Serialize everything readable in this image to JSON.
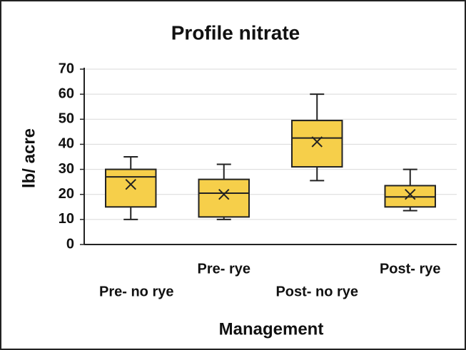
{
  "chart_data": {
    "type": "box",
    "title": "Profile nitrate",
    "x_label": "Management",
    "y_label": "lb/ acre",
    "categories": [
      "Pre- no rye",
      "Pre- rye",
      "Post- no rye",
      "Post- rye"
    ],
    "boxes": [
      {
        "min": 10,
        "q1": 15,
        "median": 27,
        "q3": 30,
        "max": 35,
        "mean": 24
      },
      {
        "min": 10,
        "q1": 11,
        "median": 20.5,
        "q3": 26,
        "max": 32,
        "mean": 20
      },
      {
        "min": 25.5,
        "q1": 31,
        "median": 42.5,
        "q3": 49.5,
        "max": 60,
        "mean": 41
      },
      {
        "min": 13.5,
        "q1": 15,
        "median": 19,
        "q3": 23.5,
        "max": 30,
        "mean": 20
      }
    ],
    "color": "#f6cf4a",
    "ylim": [
      0,
      70
    ],
    "yticks": [
      0,
      10,
      20,
      30,
      40,
      50,
      60,
      70
    ],
    "grid": true
  }
}
